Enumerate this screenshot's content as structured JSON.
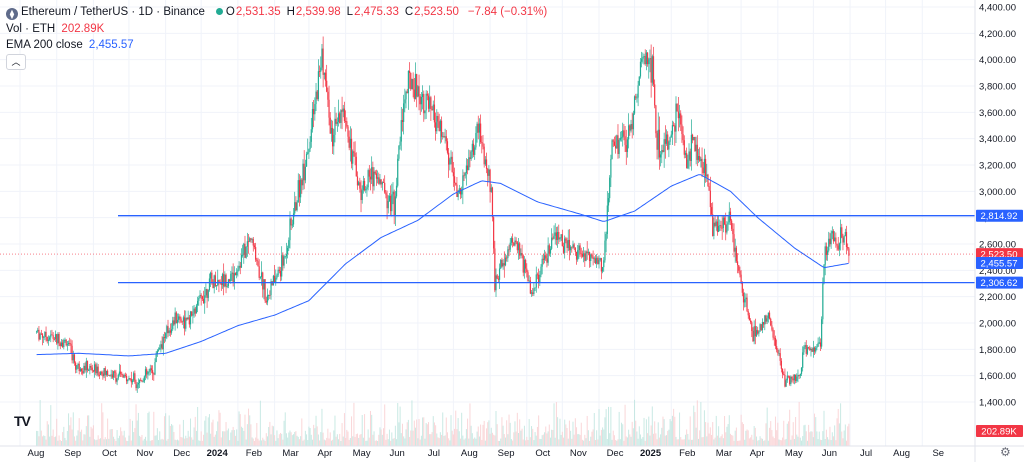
{
  "header": {
    "symbol_icon": "ethereum-icon",
    "title": "Ethereum / TetherUS · 1D · Binance",
    "status_dot_color": "#22ab94",
    "ohlc": [
      {
        "key": "O",
        "value": "2,531.35"
      },
      {
        "key": "H",
        "value": "2,539.98"
      },
      {
        "key": "L",
        "value": "2,475.33"
      },
      {
        "key": "C",
        "value": "2,523.50"
      }
    ],
    "change": "−7.84 (−0.31%)",
    "vol_label": "Vol · ETH",
    "vol_value": "202.89K",
    "ema_label": "EMA 200 close",
    "ema_value": "2,455.57",
    "collapse_icon": "chevron-up-icon"
  },
  "colors": {
    "up": "#22ab94",
    "down": "#f23645",
    "ema": "#2962ff",
    "hline": "#2962ff",
    "volume_up": "#b2dfd8",
    "volume_down": "#f8c4c7"
  },
  "price_labels": [
    {
      "value": "2,814.92",
      "color": "#2962ff",
      "price": 2814.92
    },
    {
      "value": "2,523.50",
      "color": "#f23645",
      "price": 2523.5
    },
    {
      "value": "2,455.57",
      "color": "#2962ff",
      "price": 2455.57
    },
    {
      "value": "2,306.62",
      "color": "#2962ff",
      "price": 2306.62
    },
    {
      "value": "202.89K",
      "color": "#f23645",
      "price": 1240
    }
  ],
  "chart_data": {
    "type": "candlestick",
    "y_axis_ticks": [
      4400,
      4200,
      4000,
      3800,
      3600,
      3400,
      3200,
      3000,
      2800,
      2600,
      2400,
      2200,
      2000,
      1800,
      1600,
      1400
    ],
    "y_tick_labels": [
      "4,400.00",
      "4,200.00",
      "4,000.00",
      "3,800.00",
      "3,600.00",
      "3,400.00",
      "3,200.00",
      "3,000.00",
      "2,800.00",
      "2,600.00",
      "2,400.00",
      "2,200.00",
      "2,000.00",
      "1,800.00",
      "1,600.00",
      "1,400.00"
    ],
    "x_tick_labels": [
      "Aug",
      "Sep",
      "Oct",
      "Nov",
      "Dec",
      "2024",
      "Feb",
      "Mar",
      "Apr",
      "May",
      "Jun",
      "Jul",
      "Aug",
      "Sep",
      "Oct",
      "Nov",
      "Dec",
      "2025",
      "Feb",
      "Mar",
      "Apr",
      "May",
      "Jun",
      "Jul",
      "Aug",
      "Se"
    ],
    "x_tick_bold": [
      "2024",
      "2025"
    ],
    "ylim": [
      1230,
      4410
    ],
    "horizontal_lines": [
      2814.92,
      2306.62
    ],
    "last_price_line": 2523.5,
    "price_path": [
      [
        "2023-07-15",
        1930
      ],
      [
        "2023-08-10",
        1850
      ],
      [
        "2023-08-17",
        1680
      ],
      [
        "2023-09-10",
        1620
      ],
      [
        "2023-10-10",
        1560
      ],
      [
        "2023-10-22",
        1650
      ],
      [
        "2023-10-25",
        1800
      ],
      [
        "2023-11-10",
        2050
      ],
      [
        "2023-11-20",
        2000
      ],
      [
        "2023-12-08",
        2300
      ],
      [
        "2023-12-28",
        2350
      ],
      [
        "2024-01-12",
        2650
      ],
      [
        "2024-01-25",
        2200
      ],
      [
        "2024-02-08",
        2450
      ],
      [
        "2024-02-20",
        2950
      ],
      [
        "2024-03-04",
        3500
      ],
      [
        "2024-03-12",
        4050
      ],
      [
        "2024-03-20",
        3400
      ],
      [
        "2024-03-31",
        3600
      ],
      [
        "2024-04-13",
        3000
      ],
      [
        "2024-04-25",
        3150
      ],
      [
        "2024-05-12",
        2900
      ],
      [
        "2024-05-20",
        3700
      ],
      [
        "2024-05-27",
        3850
      ],
      [
        "2024-06-15",
        3550
      ],
      [
        "2024-06-25",
        3350
      ],
      [
        "2024-07-05",
        2950
      ],
      [
        "2024-07-22",
        3450
      ],
      [
        "2024-08-02",
        3000
      ],
      [
        "2024-08-05",
        2300
      ],
      [
        "2024-08-20",
        2650
      ],
      [
        "2024-09-06",
        2250
      ],
      [
        "2024-09-25",
        2650
      ],
      [
        "2024-10-15",
        2550
      ],
      [
        "2024-11-05",
        2450
      ],
      [
        "2024-11-12",
        3350
      ],
      [
        "2024-11-25",
        3400
      ],
      [
        "2024-12-08",
        4000
      ],
      [
        "2024-12-16",
        3950
      ],
      [
        "2024-12-20",
        3350
      ],
      [
        "2024-12-31",
        3350
      ],
      [
        "2025-01-06",
        3650
      ],
      [
        "2025-01-14",
        3200
      ],
      [
        "2025-01-20",
        3400
      ],
      [
        "2025-02-02",
        3050
      ],
      [
        "2025-02-05",
        2750
      ],
      [
        "2025-02-20",
        2750
      ],
      [
        "2025-03-03",
        2200
      ],
      [
        "2025-03-11",
        1900
      ],
      [
        "2025-03-24",
        2050
      ],
      [
        "2025-04-07",
        1550
      ],
      [
        "2025-04-20",
        1600
      ],
      [
        "2025-04-23",
        1800
      ],
      [
        "2025-05-07",
        1820
      ],
      [
        "2025-05-10",
        2450
      ],
      [
        "2025-05-14",
        2650
      ],
      [
        "2025-05-28",
        2650
      ],
      [
        "2025-06-01",
        2523
      ]
    ],
    "ema_200": [
      [
        "2023-07-15",
        1760
      ],
      [
        "2023-08-20",
        1770
      ],
      [
        "2023-10-01",
        1750
      ],
      [
        "2023-11-01",
        1770
      ],
      [
        "2023-12-01",
        1860
      ],
      [
        "2024-01-01",
        1980
      ],
      [
        "2024-02-01",
        2060
      ],
      [
        "2024-03-01",
        2170
      ],
      [
        "2024-04-01",
        2450
      ],
      [
        "2024-05-01",
        2650
      ],
      [
        "2024-06-01",
        2780
      ],
      [
        "2024-07-01",
        2980
      ],
      [
        "2024-07-25",
        3080
      ],
      [
        "2024-08-10",
        3060
      ],
      [
        "2024-09-10",
        2920
      ],
      [
        "2024-10-15",
        2830
      ],
      [
        "2024-11-05",
        2770
      ],
      [
        "2024-12-01",
        2850
      ],
      [
        "2025-01-01",
        3040
      ],
      [
        "2025-01-25",
        3130
      ],
      [
        "2025-02-20",
        3000
      ],
      [
        "2025-03-15",
        2800
      ],
      [
        "2025-04-15",
        2570
      ],
      [
        "2025-05-10",
        2420
      ],
      [
        "2025-06-01",
        2455
      ]
    ]
  }
}
